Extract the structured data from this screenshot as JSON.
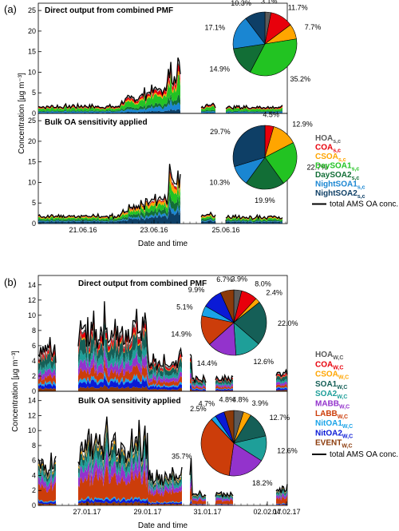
{
  "chart_data": [
    {
      "type": "area",
      "panel_label": "(a)",
      "ylabel": "Concentration [µg m⁻³]",
      "xlabel": "Date and time",
      "x_ticks": [
        "21.06.16",
        "23.06.16",
        "25.06.16"
      ],
      "x_range": [
        "20.06.16",
        "26.06.16"
      ],
      "y_ticks": [
        0,
        5,
        10,
        15,
        20,
        25
      ],
      "ylim": [
        0,
        26
      ],
      "legend": {
        "placement": "right",
        "entries": [
          {
            "base": "HOA",
            "sub": "s,c",
            "color": "#5a5a5a"
          },
          {
            "base": "COA",
            "sub": "s,c",
            "color": "#e8000b"
          },
          {
            "base": "CSOA",
            "sub": "s,c",
            "color": "#ffa500"
          },
          {
            "base": "DaySOA1",
            "sub": "s,c",
            "color": "#22c322"
          },
          {
            "base": "DaySOA2",
            "sub": "s,c",
            "color": "#126e36"
          },
          {
            "base": "NightSOA1",
            "sub": "s,c",
            "color": "#1a86d2"
          },
          {
            "base": "NightSOA2",
            "sub": "s,c",
            "color": "#0e3f66"
          }
        ],
        "total_line": "total AMS OA conc."
      },
      "subpanels": [
        {
          "title": "Direct output from combined PMF",
          "pie": [
            {
              "factor": "HOA",
              "pct": 3.1,
              "label": "3.1%"
            },
            {
              "factor": "COA",
              "pct": 11.7,
              "label": "11.7%"
            },
            {
              "factor": "CSOA",
              "pct": 7.7,
              "label": "7.7%"
            },
            {
              "factor": "DaySOA1",
              "pct": 35.2,
              "label": "35.2%"
            },
            {
              "factor": "DaySOA2",
              "pct": 14.9,
              "label": "14.9%"
            },
            {
              "factor": "NightSOA1",
              "pct": 17.1,
              "label": "17.1%"
            },
            {
              "factor": "NightSOA2",
              "pct": 10.3,
              "label": "10.3%"
            }
          ]
        },
        {
          "title": "Bulk OA sensitivity applied",
          "pie": [
            {
              "factor": "HOA",
              "pct": 0,
              "label": ""
            },
            {
              "factor": "COA",
              "pct": 4.5,
              "label": "4.5%"
            },
            {
              "factor": "CSOA",
              "pct": 12.9,
              "label": "12.9%"
            },
            {
              "factor": "DaySOA1",
              "pct": 22.7,
              "label": "22.7%"
            },
            {
              "factor": "DaySOA2",
              "pct": 19.9,
              "label": "19.9%"
            },
            {
              "factor": "NightSOA1",
              "pct": 10.3,
              "label": "10.3%"
            },
            {
              "factor": "NightSOA2",
              "pct": 29.7,
              "label": "29.7%"
            }
          ]
        }
      ]
    },
    {
      "type": "area",
      "panel_label": "(b)",
      "ylabel": "Concentration [µg m⁻³]",
      "xlabel": "Date and time",
      "x_ticks": [
        "27.01.17",
        "29.01.17",
        "31.01.17",
        "02.02.17",
        "04.02.17"
      ],
      "x_range": [
        "25.01.17",
        "04.02.17"
      ],
      "y_ticks": [
        0,
        2,
        4,
        6,
        8,
        10,
        12,
        14
      ],
      "ylim": [
        0,
        14.5
      ],
      "legend": {
        "placement": "right",
        "entries": [
          {
            "base": "HOA",
            "sub": "W,C",
            "color": "#5a5a5a"
          },
          {
            "base": "COA",
            "sub": "W,C",
            "color": "#e8000b"
          },
          {
            "base": "CSOA",
            "sub": "W,C",
            "color": "#ffa500"
          },
          {
            "base": "SOA1",
            "sub": "W,C",
            "color": "#155f57"
          },
          {
            "base": "SOA2",
            "sub": "W,C",
            "color": "#1e9f99"
          },
          {
            "base": "MABB",
            "sub": "W,C",
            "color": "#9333cc"
          },
          {
            "base": "LABB",
            "sub": "W,C",
            "color": "#cc3d0a"
          },
          {
            "base": "NitOA1",
            "sub": "W,C",
            "color": "#1aa3e8"
          },
          {
            "base": "NitOA2",
            "sub": "W,C",
            "color": "#0a1ad6"
          },
          {
            "base": "EVENT",
            "sub": "W,C",
            "color": "#8b3a0a"
          }
        ],
        "total_line": "total AMS OA conc."
      },
      "subpanels": [
        {
          "title": "Direct output from combined PMF",
          "pie": [
            {
              "factor": "HOA",
              "pct": 3.9,
              "label": "3.9%"
            },
            {
              "factor": "COA",
              "pct": 8.0,
              "label": "8.0%"
            },
            {
              "factor": "CSOA",
              "pct": 2.4,
              "label": "2.4%"
            },
            {
              "factor": "SOA1",
              "pct": 22.0,
              "label": "22.0%"
            },
            {
              "factor": "SOA2",
              "pct": 12.6,
              "label": "12.6%"
            },
            {
              "factor": "MABB",
              "pct": 14.4,
              "label": "14.4%"
            },
            {
              "factor": "LABB",
              "pct": 14.9,
              "label": "14.9%"
            },
            {
              "factor": "NitOA1",
              "pct": 5.1,
              "label": "5.1%"
            },
            {
              "factor": "NitOA2",
              "pct": 9.9,
              "label": "9.9%"
            },
            {
              "factor": "EVENT",
              "pct": 6.7,
              "label": "6.7%"
            }
          ]
        },
        {
          "title": "Bulk OA sensitivity applied",
          "pie": [
            {
              "factor": "HOA",
              "pct": 4.8,
              "label": "4.8%"
            },
            {
              "factor": "COA",
              "pct": 0,
              "label": ""
            },
            {
              "factor": "CSOA",
              "pct": 3.9,
              "label": "3.9%"
            },
            {
              "factor": "SOA1",
              "pct": 12.7,
              "label": "12.7%"
            },
            {
              "factor": "SOA2",
              "pct": 12.6,
              "label": "12.6%"
            },
            {
              "factor": "MABB",
              "pct": 18.2,
              "label": "18.2%"
            },
            {
              "factor": "LABB",
              "pct": 35.7,
              "label": "35.7%"
            },
            {
              "factor": "NitOA1",
              "pct": 2.5,
              "label": "2.5%"
            },
            {
              "factor": "NitOA2",
              "pct": 4.7,
              "label": "4.7%"
            },
            {
              "factor": "EVENT",
              "pct": 4.8,
              "label": "4.8%"
            }
          ]
        }
      ]
    }
  ]
}
